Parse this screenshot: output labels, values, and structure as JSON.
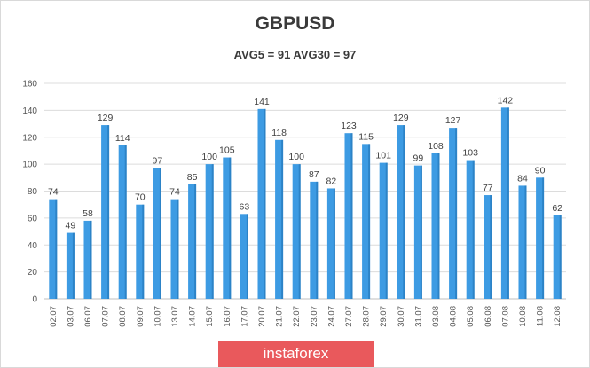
{
  "watermark": "instaforex",
  "chart_data": {
    "type": "bar",
    "title": "GBPUSD",
    "subtitle": "AVG5 = 91 AVG30 = 97",
    "xlabel": "",
    "ylabel": "",
    "ylim": [
      0,
      160
    ],
    "yticks": [
      0,
      20,
      40,
      60,
      80,
      100,
      120,
      140,
      160
    ],
    "grid": true,
    "legend": "none",
    "bar_color": "#3d9be3",
    "categories": [
      "02.07",
      "03.07",
      "06.07",
      "07.07",
      "08.07",
      "09.07",
      "10.07",
      "13.07",
      "14.07",
      "15.07",
      "16.07",
      "17.07",
      "20.07",
      "21.07",
      "22.07",
      "23.07",
      "24.07",
      "27.07",
      "28.07",
      "29.07",
      "30.07",
      "31.07",
      "03.08",
      "04.08",
      "05.08",
      "06.08",
      "07.08",
      "10.08",
      "11.08",
      "12.08"
    ],
    "values": [
      74,
      49,
      58,
      129,
      114,
      70,
      97,
      74,
      85,
      100,
      105,
      63,
      141,
      118,
      100,
      87,
      82,
      123,
      115,
      101,
      129,
      99,
      108,
      127,
      103,
      77,
      142,
      84,
      90,
      62
    ]
  }
}
